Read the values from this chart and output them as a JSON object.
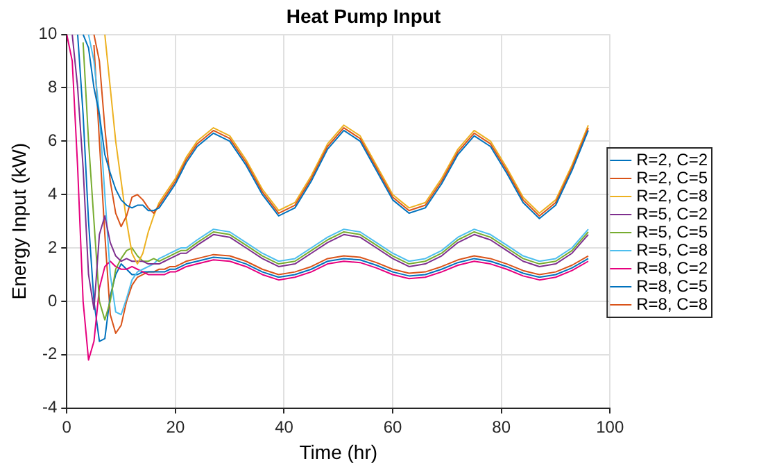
{
  "chart_data": {
    "type": "line",
    "title": "Heat Pump Input",
    "xlabel": "Time (hr)",
    "ylabel": "Energy Input (kW)",
    "x": [
      0,
      1,
      2,
      3,
      4,
      5,
      6,
      7,
      8,
      9,
      10,
      11,
      12,
      13,
      14,
      15,
      16,
      17,
      18,
      19,
      20,
      21,
      22,
      24,
      27,
      30,
      33,
      36,
      39,
      42,
      45,
      48,
      51,
      54,
      57,
      60,
      63,
      66,
      69,
      72,
      75,
      78,
      81,
      84,
      87,
      90,
      93,
      96
    ],
    "xlim": [
      0,
      100
    ],
    "xticks": [
      0,
      20,
      40,
      60,
      80,
      100
    ],
    "ylim": [
      -4,
      10
    ],
    "yticks": [
      -4,
      -2,
      0,
      2,
      4,
      6,
      8,
      10
    ],
    "grid": true,
    "legend": "right",
    "line_style": "solid",
    "marker": "none",
    "series": [
      {
        "name": "R=2, C=2",
        "color": "#0072bd",
        "values": [
          null,
          null,
          null,
          10,
          9.5,
          8,
          7,
          5.5,
          4.8,
          4.2,
          3.8,
          3.6,
          3.5,
          3.6,
          3.6,
          3.4,
          3.4,
          3.5,
          3.8,
          4.1,
          4.4,
          4.8,
          5.2,
          5.8,
          6.3,
          6.0,
          5.1,
          4.0,
          3.2,
          3.5,
          4.5,
          5.7,
          6.4,
          6.0,
          4.9,
          3.8,
          3.3,
          3.5,
          4.4,
          5.5,
          6.2,
          5.8,
          4.8,
          3.7,
          3.1,
          3.6,
          4.9,
          6.4
        ]
      },
      {
        "name": "R=2, C=5",
        "color": "#d95319",
        "values": [
          null,
          null,
          null,
          null,
          null,
          10,
          9,
          6.5,
          4.5,
          3.3,
          2.8,
          3.2,
          3.9,
          4.0,
          3.8,
          3.5,
          3.3,
          3.6,
          3.9,
          4.2,
          4.5,
          4.9,
          5.3,
          5.9,
          6.4,
          6.1,
          5.2,
          4.1,
          3.3,
          3.6,
          4.6,
          5.8,
          6.5,
          6.1,
          5.0,
          3.9,
          3.4,
          3.6,
          4.5,
          5.6,
          6.3,
          5.9,
          4.9,
          3.8,
          3.2,
          3.7,
          5.0,
          6.5
        ]
      },
      {
        "name": "R=2, C=8",
        "color": "#edb120",
        "values": [
          null,
          null,
          null,
          null,
          null,
          null,
          null,
          10,
          8,
          6,
          4.5,
          3.0,
          1.8,
          1.4,
          1.8,
          2.6,
          3.2,
          3.7,
          4.0,
          4.3,
          4.6,
          5.0,
          5.4,
          6.0,
          6.5,
          6.2,
          5.3,
          4.2,
          3.4,
          3.7,
          4.7,
          5.9,
          6.6,
          6.2,
          5.1,
          4.0,
          3.5,
          3.7,
          4.6,
          5.7,
          6.4,
          6.0,
          5.0,
          3.9,
          3.3,
          3.8,
          5.1,
          6.6
        ]
      },
      {
        "name": "R=5, C=2",
        "color": "#7e2f8e",
        "values": [
          null,
          10,
          8,
          5,
          1,
          -0.3,
          2.5,
          3.2,
          2.2,
          1.7,
          1.5,
          1.6,
          1.5,
          1.5,
          1.5,
          1.4,
          1.4,
          1.4,
          1.5,
          1.6,
          1.7,
          1.8,
          1.8,
          2.1,
          2.5,
          2.4,
          2.0,
          1.6,
          1.3,
          1.4,
          1.8,
          2.2,
          2.5,
          2.4,
          2.0,
          1.6,
          1.3,
          1.4,
          1.7,
          2.2,
          2.5,
          2.3,
          1.9,
          1.5,
          1.3,
          1.4,
          1.8,
          2.5
        ]
      },
      {
        "name": "R=5, C=5",
        "color": "#77ac30",
        "values": [
          null,
          null,
          null,
          9.7,
          6,
          3,
          0,
          -0.7,
          0,
          1.2,
          1.6,
          1.9,
          2.0,
          1.7,
          1.5,
          1.5,
          1.6,
          1.5,
          1.6,
          1.7,
          1.8,
          1.9,
          1.9,
          2.2,
          2.6,
          2.5,
          2.1,
          1.7,
          1.4,
          1.5,
          1.9,
          2.3,
          2.6,
          2.5,
          2.1,
          1.7,
          1.4,
          1.5,
          1.8,
          2.3,
          2.6,
          2.4,
          2.0,
          1.6,
          1.4,
          1.5,
          1.9,
          2.6
        ]
      },
      {
        "name": "R=5, C=8",
        "color": "#4dbeee",
        "values": [
          null,
          null,
          null,
          null,
          10,
          9,
          7,
          4,
          1,
          -0.4,
          -0.5,
          0.1,
          0.8,
          1.1,
          1.2,
          1.3,
          1.4,
          1.6,
          1.7,
          1.8,
          1.9,
          2.0,
          2.0,
          2.3,
          2.7,
          2.6,
          2.2,
          1.8,
          1.5,
          1.6,
          2.0,
          2.4,
          2.7,
          2.6,
          2.2,
          1.8,
          1.5,
          1.6,
          1.9,
          2.4,
          2.7,
          2.5,
          2.1,
          1.7,
          1.5,
          1.6,
          2.0,
          2.7
        ]
      },
      {
        "name": "R=8, C=2",
        "color": "#e6007e",
        "values": [
          10,
          9,
          5,
          0,
          -2.2,
          -1.5,
          0.5,
          1.3,
          1.5,
          1.3,
          1.2,
          1.2,
          1.3,
          1.2,
          1.1,
          1.0,
          1.0,
          1.0,
          1.0,
          1.1,
          1.1,
          1.2,
          1.3,
          1.4,
          1.55,
          1.5,
          1.3,
          1.0,
          0.8,
          0.9,
          1.1,
          1.4,
          1.5,
          1.45,
          1.25,
          1.0,
          0.85,
          0.9,
          1.1,
          1.35,
          1.5,
          1.4,
          1.2,
          0.95,
          0.8,
          0.9,
          1.15,
          1.5
        ]
      },
      {
        "name": "R=8, C=5",
        "color": "#0072bd",
        "values": [
          null,
          null,
          10,
          7,
          3,
          0,
          -1.5,
          -1.4,
          0.2,
          1.0,
          1.4,
          1.2,
          1.0,
          1.0,
          1.1,
          1.1,
          1.1,
          1.1,
          1.1,
          1.2,
          1.2,
          1.3,
          1.4,
          1.5,
          1.65,
          1.6,
          1.4,
          1.1,
          0.9,
          1.0,
          1.2,
          1.5,
          1.6,
          1.55,
          1.35,
          1.1,
          0.95,
          1.0,
          1.2,
          1.45,
          1.6,
          1.5,
          1.3,
          1.05,
          0.9,
          1.0,
          1.25,
          1.6
        ]
      },
      {
        "name": "R=8, C=8",
        "color": "#d95319",
        "values": [
          null,
          null,
          null,
          null,
          null,
          9.6,
          6,
          2.5,
          -0.5,
          -1.2,
          -0.9,
          0,
          0.6,
          0.9,
          1.0,
          1.1,
          1.1,
          1.2,
          1.2,
          1.3,
          1.3,
          1.4,
          1.5,
          1.6,
          1.75,
          1.7,
          1.5,
          1.2,
          1.0,
          1.1,
          1.3,
          1.6,
          1.7,
          1.65,
          1.45,
          1.2,
          1.05,
          1.1,
          1.3,
          1.55,
          1.7,
          1.6,
          1.4,
          1.15,
          1.0,
          1.1,
          1.35,
          1.7
        ]
      }
    ]
  }
}
